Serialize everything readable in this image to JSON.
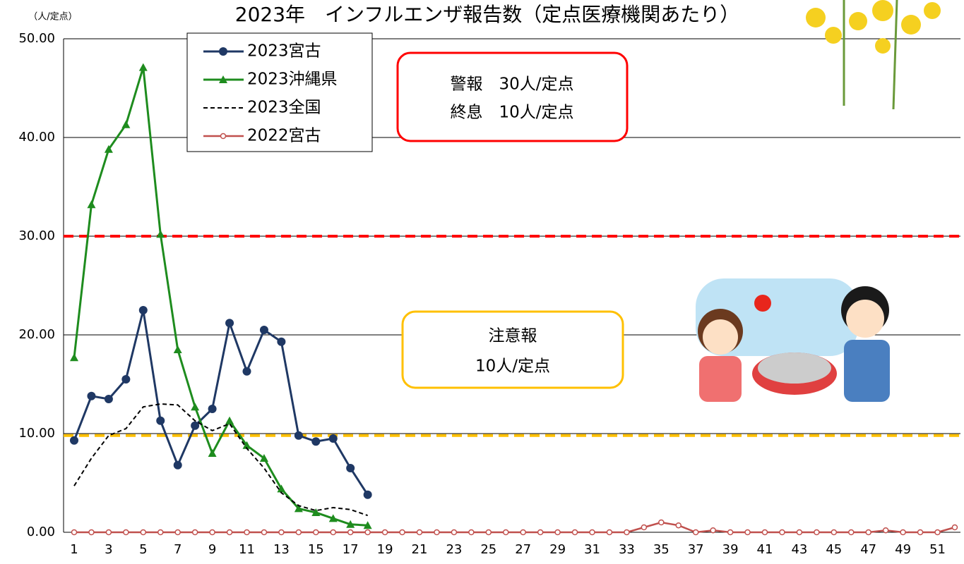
{
  "chart_data": {
    "type": "line",
    "title": "2023年　インフルエンザ報告数（定点医療機関あたり）",
    "y_unit_label": "（人/定点）",
    "categories": [
      1,
      null,
      3,
      null,
      5,
      null,
      7,
      null,
      9,
      null,
      11,
      null,
      13,
      null,
      15,
      null,
      17,
      null,
      19,
      null,
      21,
      null,
      23,
      null,
      25,
      null,
      27,
      null,
      29,
      null,
      31,
      null,
      33,
      null,
      35,
      null,
      37,
      null,
      39,
      null,
      41,
      null,
      43,
      null,
      45,
      null,
      47,
      null,
      49,
      null,
      51,
      null
    ],
    "ylim": [
      0,
      50
    ],
    "yticks": [
      {
        "value": 0,
        "label": "0.00"
      },
      {
        "value": 10,
        "label": "10.00"
      },
      {
        "value": 20,
        "label": "20.00"
      },
      {
        "value": 30,
        "label": "30.00"
      },
      {
        "value": 40,
        "label": "40.00"
      },
      {
        "value": 50,
        "label": "50.00"
      }
    ],
    "grid": true,
    "series": [
      {
        "name": "2023宮古",
        "color": "#1f3864",
        "marker": "circle",
        "dash": "solid",
        "width": 3,
        "values": [
          9.3,
          13.8,
          13.5,
          15.5,
          22.5,
          11.3,
          6.8,
          10.8,
          12.5,
          21.2,
          16.3,
          20.5,
          19.3,
          9.8,
          9.2,
          9.5,
          6.5,
          3.8,
          null,
          null,
          null,
          null,
          null,
          null,
          null,
          null,
          null,
          null,
          null,
          null,
          null,
          null,
          null,
          null,
          null,
          null,
          null,
          null,
          null,
          null,
          null,
          null,
          null,
          null,
          null,
          null,
          null,
          null,
          null,
          null,
          null,
          null
        ]
      },
      {
        "name": "2023沖縄県",
        "color": "#1e8c1e",
        "marker": "triangle",
        "dash": "solid",
        "width": 3,
        "values": [
          17.7,
          33.2,
          38.8,
          41.3,
          47.1,
          30.2,
          18.5,
          12.7,
          8.0,
          11.3,
          8.8,
          7.5,
          4.4,
          2.4,
          2.0,
          1.4,
          0.8,
          0.7,
          null,
          null,
          null,
          null,
          null,
          null,
          null,
          null,
          null,
          null,
          null,
          null,
          null,
          null,
          null,
          null,
          null,
          null,
          null,
          null,
          null,
          null,
          null,
          null,
          null,
          null,
          null,
          null,
          null,
          null,
          null,
          null,
          null,
          null
        ]
      },
      {
        "name": "2023全国",
        "color": "#000000",
        "marker": "none",
        "dash": "dashed",
        "width": 2,
        "values": [
          4.7,
          7.5,
          9.8,
          10.5,
          12.7,
          13.0,
          12.9,
          11.3,
          10.3,
          11.0,
          8.5,
          6.5,
          4.0,
          2.7,
          2.2,
          2.5,
          2.3,
          1.7,
          null,
          null,
          null,
          null,
          null,
          null,
          null,
          null,
          null,
          null,
          null,
          null,
          null,
          null,
          null,
          null,
          null,
          null,
          null,
          null,
          null,
          null,
          null,
          null,
          null,
          null,
          null,
          null,
          null,
          null,
          null,
          null,
          null,
          null
        ]
      },
      {
        "name": "2022宮古",
        "color": "#c0504d",
        "marker": "open-circle",
        "dash": "solid",
        "width": 2.5,
        "values": [
          0,
          0,
          0,
          0,
          0,
          0,
          0,
          0,
          0,
          0,
          0,
          0,
          0,
          0,
          0,
          0,
          0,
          0,
          0,
          0,
          0,
          0,
          0,
          0,
          0,
          0,
          0,
          0,
          0,
          0,
          0,
          0,
          0,
          0.5,
          1.0,
          0.7,
          0,
          0.2,
          0,
          0,
          0,
          0,
          0,
          0,
          0,
          0,
          0,
          0.2,
          0,
          0,
          0,
          0.5
        ]
      }
    ],
    "reference_lines": [
      {
        "value": 30,
        "color": "#ff0000"
      },
      {
        "value": 9.8,
        "color": "#ffc000"
      }
    ],
    "annotations": [
      {
        "color": "#ff0000",
        "lines": [
          "警報　30人/定点",
          "終息　10人/定点"
        ]
      },
      {
        "color": "#ffc000",
        "lines": [
          "注意報",
          "10人/定点"
        ]
      }
    ]
  }
}
